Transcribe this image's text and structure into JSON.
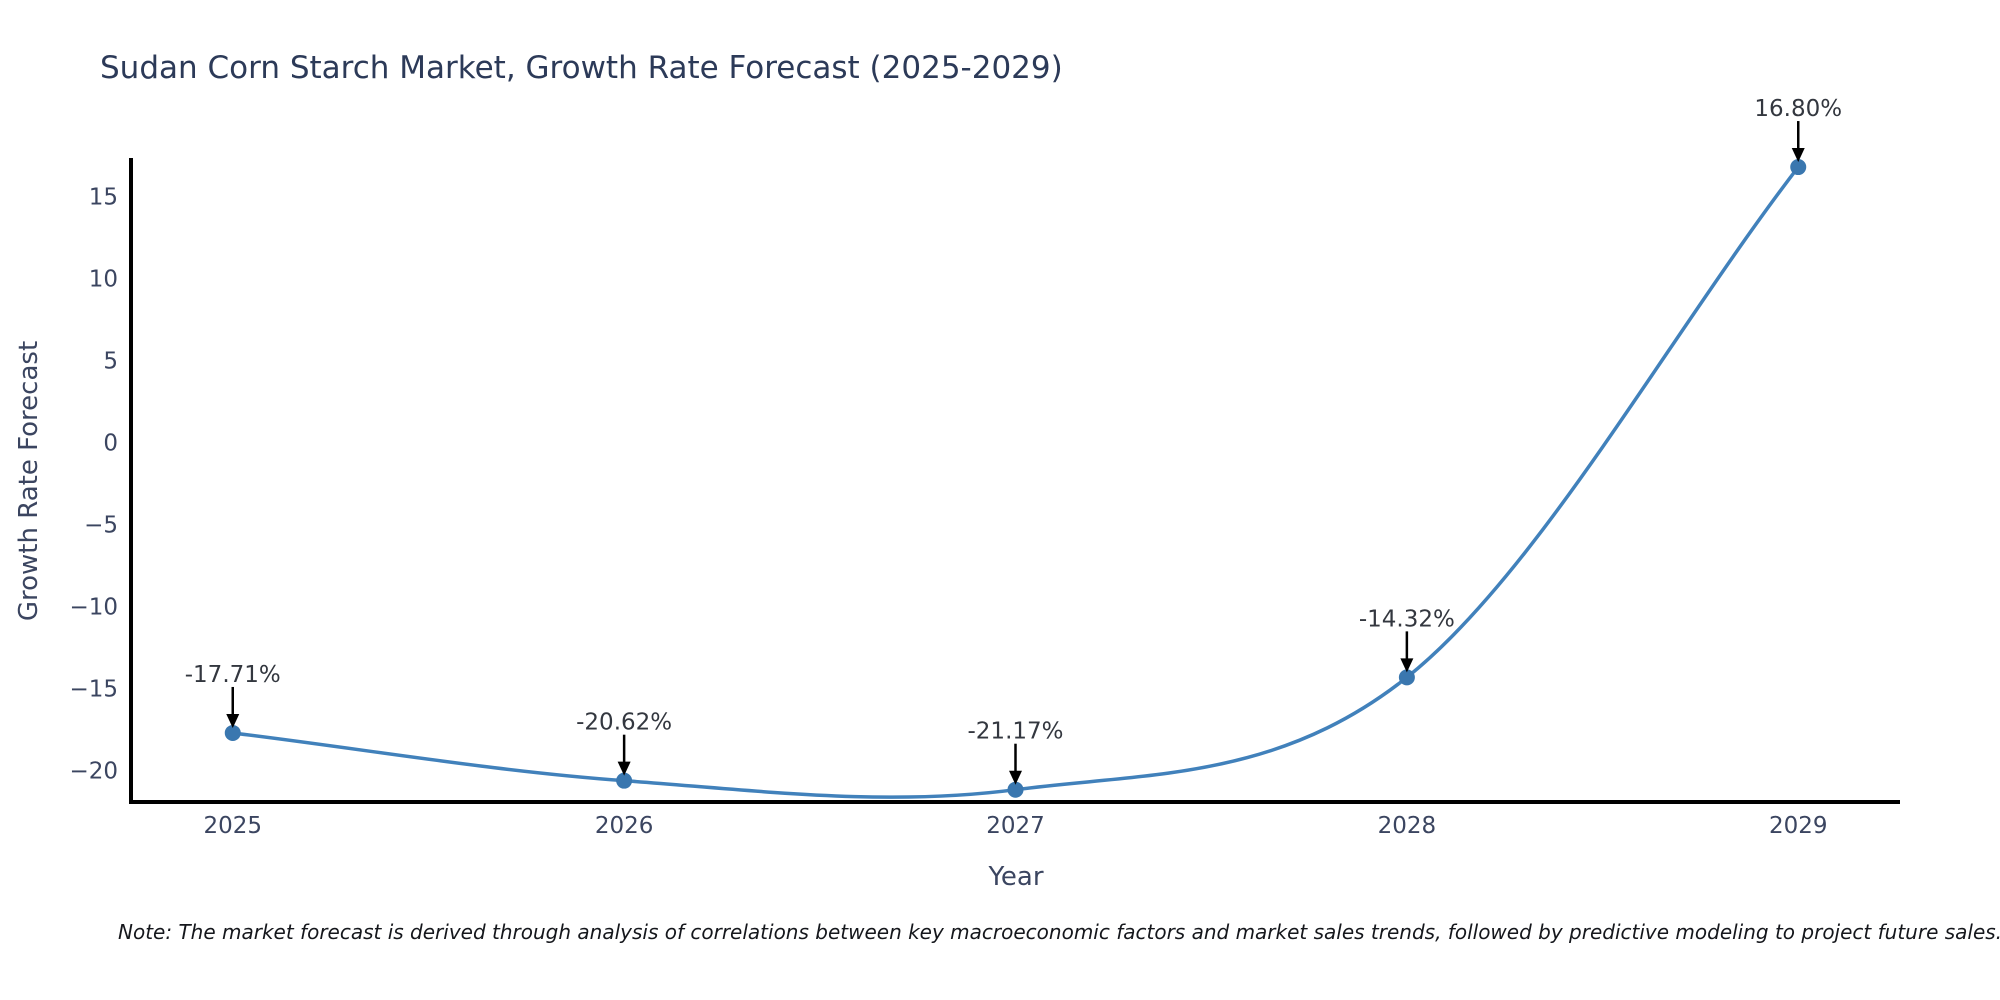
{
  "title": "Sudan Corn Starch Market, Growth Rate Forecast (2025-2029)",
  "note": "Note: The market forecast is derived through analysis of correlations between key macroeconomic factors and market sales trends, followed by predictive modeling to project future sales.",
  "chart_data": {
    "type": "line",
    "title": "Sudan Corn Starch Market, Growth Rate Forecast (2025-2029)",
    "xlabel": "Year",
    "ylabel": "Growth Rate Forecast",
    "x": [
      2025,
      2026,
      2027,
      2028,
      2029
    ],
    "series": [
      {
        "name": "Growth Rate Forecast",
        "values": [
          -17.71,
          -20.62,
          -21.17,
          -14.32,
          16.8
        ]
      }
    ],
    "point_labels": [
      "-17.71%",
      "-20.62%",
      "-21.17%",
      "-14.32%",
      "16.80%"
    ],
    "yticks": [
      15,
      10,
      5,
      0,
      -5,
      -10,
      -15,
      -20
    ],
    "ylim": [
      -21.92,
      17.23
    ],
    "xlim": [
      2024.74,
      2029.26
    ],
    "grid": false,
    "legend": "none",
    "line_shape": "spline",
    "line_color": "#4181bb",
    "marker_color": "#3a77af",
    "axis_color": "#000000",
    "tick_color": "#3b4560",
    "title_color": "#2c3a58",
    "annotation_color": "#33373f",
    "arrow_color": "#000000"
  }
}
